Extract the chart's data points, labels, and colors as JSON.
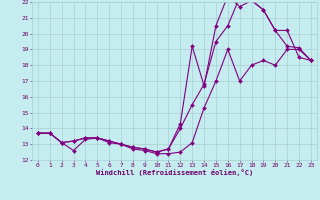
{
  "xlabel": "Windchill (Refroidissement éolien,°C)",
  "xlim": [
    -0.5,
    23.5
  ],
  "ylim": [
    12,
    22
  ],
  "xticks": [
    0,
    1,
    2,
    3,
    4,
    5,
    6,
    7,
    8,
    9,
    10,
    11,
    12,
    13,
    14,
    15,
    16,
    17,
    18,
    19,
    20,
    21,
    22,
    23
  ],
  "yticks": [
    12,
    13,
    14,
    15,
    16,
    17,
    18,
    19,
    20,
    21,
    22
  ],
  "bg_color": "#c5ecee",
  "grid_color": "#aacfd4",
  "line_color": "#800080",
  "line1_x": [
    0,
    1,
    2,
    3,
    4,
    5,
    6,
    7,
    8,
    9,
    10,
    11,
    12,
    13,
    14,
    15,
    16,
    17,
    18,
    19,
    20,
    21,
    22,
    23
  ],
  "line1_y": [
    13.7,
    13.7,
    13.1,
    12.6,
    13.3,
    13.4,
    13.1,
    13.0,
    12.7,
    12.6,
    12.4,
    12.4,
    12.5,
    13.1,
    15.3,
    17.0,
    19.0,
    17.0,
    18.0,
    18.3,
    18.0,
    19.0,
    19.0,
    18.3
  ],
  "line2_x": [
    0,
    1,
    2,
    3,
    4,
    5,
    6,
    7,
    8,
    9,
    10,
    11,
    12,
    13,
    14,
    15,
    16,
    17,
    18,
    19,
    20,
    21,
    22,
    23
  ],
  "line2_y": [
    13.7,
    13.7,
    13.1,
    13.2,
    13.4,
    13.4,
    13.2,
    13.0,
    12.8,
    12.7,
    12.5,
    12.7,
    14.0,
    15.5,
    16.8,
    19.5,
    20.5,
    22.3,
    22.1,
    21.5,
    20.2,
    19.2,
    19.1,
    18.3
  ],
  "line3_x": [
    0,
    1,
    2,
    3,
    4,
    5,
    6,
    7,
    8,
    9,
    10,
    11,
    12,
    13,
    14,
    15,
    16,
    17,
    18,
    19,
    20,
    21,
    22,
    23
  ],
  "line3_y": [
    13.7,
    13.7,
    13.1,
    13.2,
    13.4,
    13.4,
    13.2,
    13.0,
    12.8,
    12.7,
    12.5,
    12.7,
    14.3,
    19.2,
    16.7,
    20.5,
    22.4,
    21.7,
    22.1,
    21.5,
    20.2,
    20.2,
    18.5,
    18.3
  ],
  "markersize": 2.0,
  "linewidth": 0.8
}
